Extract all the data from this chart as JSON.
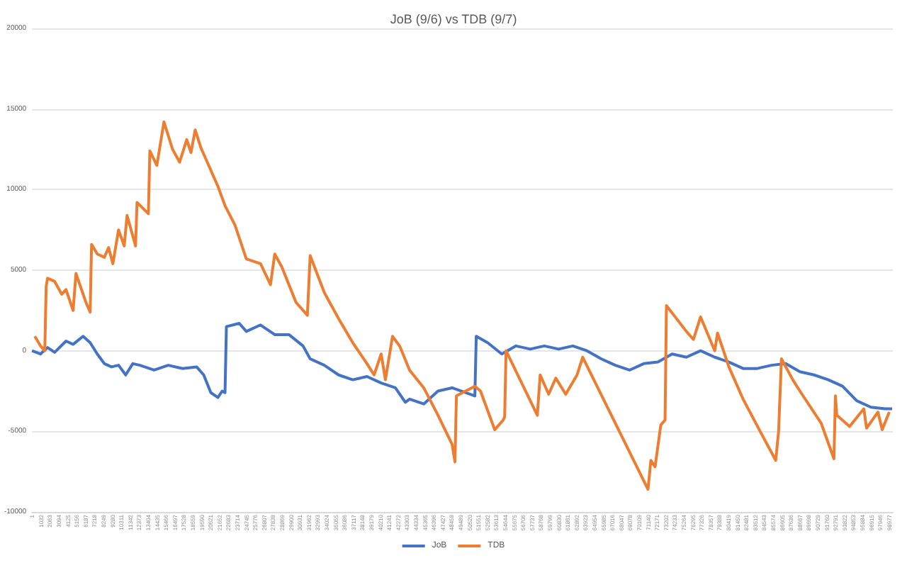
{
  "chart_data": {
    "type": "line",
    "title": "JoB (9/6) vs TDB (9/7)",
    "series": [
      {
        "name": "JoB",
        "color": "#4472c4",
        "x": [
          1,
          980,
          1800,
          2620,
          3930,
          4750,
          5900,
          6720,
          7540,
          8360,
          9180,
          10000,
          10820,
          11640,
          12460,
          14100,
          15730,
          17370,
          19010,
          19830,
          20650,
          21470,
          21960,
          22290,
          22450,
          23930,
          24750,
          26390,
          28030,
          29670,
          31300,
          32120,
          33760,
          35400,
          37040,
          38680,
          40320,
          41960,
          43110,
          43600,
          45240,
          46880,
          48510,
          51140,
          51300,
          52610,
          54250,
          55890,
          57530,
          59170,
          60810,
          62450,
          64080,
          65720,
          67360,
          69000,
          70640,
          72280,
          73920,
          75560,
          77200,
          78840,
          80470,
          82110,
          83750,
          85390,
          87030,
          88670,
          90310,
          91950,
          93590,
          95230,
          96860,
          98500,
          99320
        ],
        "values": [
          0,
          -200,
          200,
          -100,
          600,
          400,
          900,
          500,
          -200,
          -800,
          -1000,
          -900,
          -1500,
          -800,
          -900,
          -1200,
          -900,
          -1100,
          -1000,
          -1500,
          -2600,
          -2900,
          -2500,
          -2600,
          1500,
          1700,
          1200,
          1600,
          1000,
          1000,
          300,
          -500,
          -900,
          -1500,
          -1800,
          -1600,
          -2000,
          -2300,
          -3200,
          -3000,
          -3300,
          -2500,
          -2300,
          -2800,
          900,
          500,
          -200,
          300,
          100,
          300,
          100,
          300,
          0,
          -500,
          -900,
          -1200,
          -800,
          -700,
          -200,
          -400,
          0,
          -400,
          -700,
          -1100,
          -1100,
          -900,
          -800,
          -1300,
          -1500,
          -1800,
          -2200,
          -3100,
          -3500,
          -3600,
          -3600
        ]
      },
      {
        "name": "TDB",
        "color": "#ed7d31",
        "x": [
          330,
          980,
          1480,
          1640,
          1800,
          2620,
          3440,
          3930,
          4750,
          5080,
          6230,
          6720,
          6880,
          7540,
          8360,
          8850,
          9340,
          10000,
          10650,
          10980,
          11960,
          12130,
          13440,
          13610,
          14420,
          15240,
          16230,
          17050,
          17870,
          18360,
          18850,
          19500,
          20650,
          21470,
          22290,
          23440,
          24750,
          26390,
          27540,
          28030,
          28850,
          30490,
          31800,
          32120,
          33760,
          35400,
          37040,
          38680,
          39500,
          40320,
          40810,
          41630,
          42450,
          43600,
          45240,
          46880,
          48510,
          48840,
          49010,
          51140,
          51790,
          53430,
          54410,
          54580,
          54740,
          58350,
          58680,
          59660,
          60480,
          61630,
          62940,
          63590,
          71130,
          71460,
          71950,
          72610,
          73100,
          73260,
          75560,
          76380,
          77200,
          78840,
          79160,
          80470,
          82110,
          84080,
          85880,
          86210,
          86540,
          87850,
          88670,
          91130,
          92600,
          92770,
          92930,
          94410,
          96050,
          96370,
          97680,
          98170,
          98990
        ],
        "values": [
          900,
          300,
          0,
          4000,
          4500,
          4300,
          3500,
          3800,
          2500,
          4800,
          3000,
          2400,
          6600,
          6000,
          5800,
          6400,
          5400,
          7500,
          6500,
          8400,
          6500,
          9200,
          8500,
          12400,
          11500,
          14200,
          12500,
          11700,
          13100,
          12300,
          13700,
          12600,
          11200,
          10200,
          9000,
          7800,
          5700,
          5400,
          4100,
          6000,
          5200,
          3000,
          2200,
          5900,
          3600,
          2000,
          500,
          -800,
          -1500,
          -200,
          -1800,
          900,
          300,
          -1200,
          -2300,
          -4000,
          -5800,
          -6900,
          -2800,
          -2200,
          -2500,
          -4900,
          -4300,
          -4100,
          0,
          -4000,
          -1500,
          -2700,
          -1700,
          -2700,
          -1500,
          -400,
          -8600,
          -6800,
          -7200,
          -4600,
          -4300,
          2800,
          1200,
          700,
          2100,
          0,
          1100,
          -1000,
          -3000,
          -5000,
          -6800,
          -5000,
          -500,
          -1800,
          -2500,
          -4500,
          -6700,
          -2800,
          -4000,
          -4700,
          -3600,
          -4800,
          -3800,
          -4900,
          -3800
        ]
      }
    ],
    "xlim": [
      1,
      99400
    ],
    "xticks": [
      1,
      1032,
      2063,
      3094,
      4125,
      5156,
      6187,
      7218,
      8249,
      9280,
      10311,
      11342,
      12373,
      13404,
      14435,
      15466,
      16497,
      17528,
      18559,
      19590,
      20621,
      21652,
      22683,
      23714,
      24745,
      25776,
      26807,
      27838,
      28869,
      29900,
      30931,
      31962,
      32993,
      34024,
      35055,
      36086,
      37117,
      38148,
      39179,
      40210,
      41241,
      42272,
      43303,
      44334,
      45365,
      46396,
      47427,
      48458,
      49489,
      50520,
      51551,
      52582,
      53613,
      54644,
      55675,
      56706,
      57737,
      58768,
      59799,
      60830,
      61861,
      62892,
      63923,
      64954,
      65985,
      67016,
      68047,
      69078,
      70109,
      71140,
      72171,
      73202,
      74233,
      75264,
      76295,
      77326,
      78357,
      79388,
      80419,
      81450,
      82481,
      83512,
      84543,
      85574,
      86605,
      87636,
      88667,
      89698,
      90729,
      91760,
      92791,
      93822,
      94853,
      95884,
      96915,
      97946,
      98977
    ],
    "ylim": [
      -10000,
      20000
    ],
    "yticks": [
      -10000,
      -5000,
      0,
      5000,
      10000,
      15000,
      20000
    ],
    "grid": "y",
    "legend": "bottom",
    "marker": "none",
    "line_style": "solid"
  }
}
